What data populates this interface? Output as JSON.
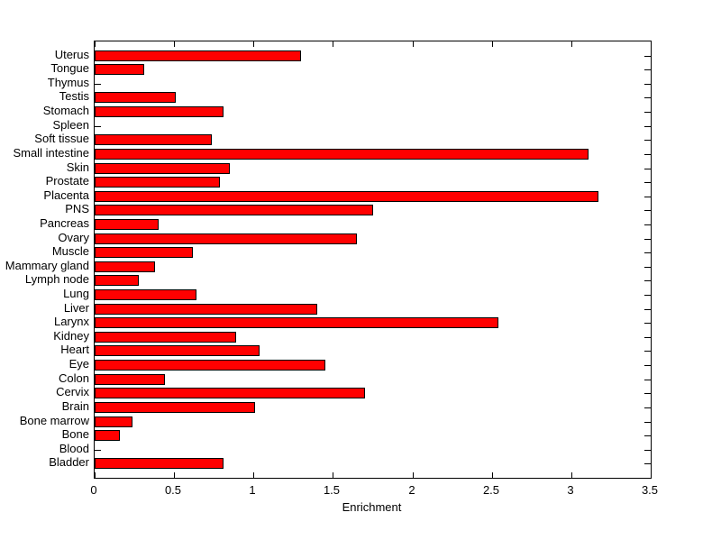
{
  "figure": {
    "background_color": "#ffffff",
    "bar_color": "#ff0000",
    "bar_edge_color": "#000000",
    "axis_color": "#000000"
  },
  "chart_data": {
    "type": "bar",
    "orientation": "horizontal",
    "title": "",
    "xlabel": "Enrichment",
    "ylabel": "",
    "xlim": [
      0,
      3.5
    ],
    "x_ticks": [
      0,
      0.5,
      1,
      1.5,
      2,
      2.5,
      3,
      3.5
    ],
    "x_tick_labels": [
      "0",
      "0.5",
      "1",
      "1.5",
      "2",
      "2.5",
      "3",
      "3.5"
    ],
    "grid": false,
    "legend": null,
    "categories": [
      "Uterus",
      "Tongue",
      "Thymus",
      "Testis",
      "Stomach",
      "Spleen",
      "Soft tissue",
      "Small intestine",
      "Skin",
      "Prostate",
      "Placenta",
      "PNS",
      "Pancreas",
      "Ovary",
      "Muscle",
      "Mammary gland",
      "Lymph node",
      "Lung",
      "Liver",
      "Larynx",
      "Kidney",
      "Heart",
      "Eye",
      "Colon",
      "Cervix",
      "Brain",
      "Bone marrow",
      "Bone",
      "Blood",
      "Bladder"
    ],
    "values": [
      1.3,
      0.31,
      0,
      0.51,
      0.81,
      0,
      0.74,
      3.11,
      0.85,
      0.79,
      3.17,
      1.75,
      0.4,
      1.65,
      0.62,
      0.38,
      0.28,
      0.64,
      1.4,
      2.54,
      0.89,
      1.04,
      1.45,
      0.44,
      1.7,
      1.01,
      0.24,
      0.16,
      0,
      0.81
    ]
  }
}
